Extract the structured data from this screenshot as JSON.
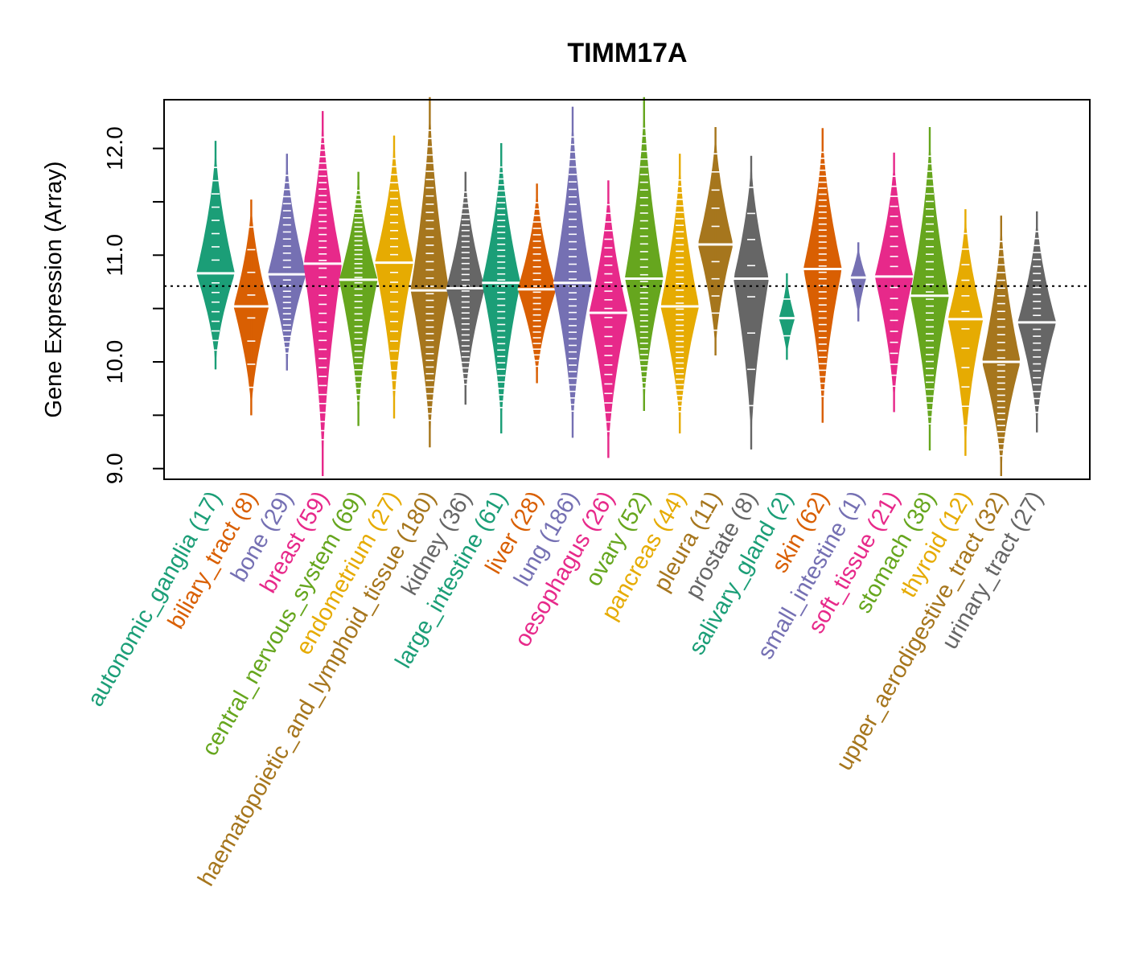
{
  "chart_data": {
    "type": "violin",
    "title": "TIMM17A",
    "xlabel": "",
    "ylabel": "Gene Expression (Array)",
    "ylim": [
      8.95,
      12.5
    ],
    "yticks": [
      9.0,
      9.5,
      10.0,
      10.5,
      11.0,
      11.5,
      12.0
    ],
    "ytick_labels": [
      "9.0",
      "",
      "10.0",
      "",
      "11.0",
      "",
      "12.0"
    ],
    "reference_line": 10.71,
    "grid": false,
    "legend": "none",
    "categories": [
      "autonomic_ganglia",
      "biliary_tract",
      "bone",
      "breast",
      "central_nervous_system",
      "endometrium",
      "haematopoietic_and_lymphoid_tissue",
      "kidney",
      "large_intestine",
      "liver",
      "lung",
      "oesophagus",
      "ovary",
      "pancreas",
      "pleura",
      "prostate",
      "salivary_gland",
      "skin",
      "small_intestine",
      "soft_tissue",
      "stomach",
      "thyroid",
      "upper_aerodigestive_tract",
      "urinary_tract"
    ],
    "counts": [
      17,
      8,
      29,
      59,
      69,
      27,
      180,
      36,
      61,
      28,
      186,
      26,
      52,
      44,
      11,
      8,
      2,
      62,
      1,
      21,
      38,
      12,
      32,
      27
    ],
    "colors": [
      "#1B9E77",
      "#D95F02",
      "#7570B3",
      "#E7298A",
      "#66A61E",
      "#E6AB02",
      "#A6761D",
      "#666666",
      "#1B9E77",
      "#D95F02",
      "#7570B3",
      "#E7298A",
      "#66A61E",
      "#E6AB02",
      "#A6761D",
      "#666666",
      "#1B9E77",
      "#D95F02",
      "#7570B3",
      "#E7298A",
      "#66A61E",
      "#E6AB02",
      "#A6761D",
      "#666666"
    ],
    "series": [
      {
        "name": "autonomic_ganglia",
        "min": 9.93,
        "max": 12.07,
        "median": 10.83
      },
      {
        "name": "biliary_tract",
        "min": 9.5,
        "max": 11.52,
        "median": 10.52
      },
      {
        "name": "bone",
        "min": 9.92,
        "max": 11.95,
        "median": 10.82
      },
      {
        "name": "breast",
        "min": 8.93,
        "max": 12.35,
        "median": 10.92
      },
      {
        "name": "central_nervous_system",
        "min": 9.4,
        "max": 11.78,
        "median": 10.77
      },
      {
        "name": "endometrium",
        "min": 9.47,
        "max": 12.12,
        "median": 10.93
      },
      {
        "name": "haematopoietic_and_lymphoid_tissue",
        "min": 9.2,
        "max": 12.5,
        "median": 10.67
      },
      {
        "name": "kidney",
        "min": 9.6,
        "max": 11.78,
        "median": 10.69
      },
      {
        "name": "large_intestine",
        "min": 9.33,
        "max": 12.05,
        "median": 10.74
      },
      {
        "name": "liver",
        "min": 9.8,
        "max": 11.67,
        "median": 10.68
      },
      {
        "name": "lung",
        "min": 9.29,
        "max": 12.39,
        "median": 10.74
      },
      {
        "name": "oesophagus",
        "min": 9.1,
        "max": 11.7,
        "median": 10.46
      },
      {
        "name": "ovary",
        "min": 9.54,
        "max": 12.48,
        "median": 10.78
      },
      {
        "name": "pancreas",
        "min": 9.33,
        "max": 11.95,
        "median": 10.52
      },
      {
        "name": "pleura",
        "min": 10.06,
        "max": 12.2,
        "median": 11.1
      },
      {
        "name": "prostate",
        "min": 9.18,
        "max": 11.93,
        "median": 10.78
      },
      {
        "name": "salivary_gland",
        "min": 10.02,
        "max": 10.83,
        "median": 10.41
      },
      {
        "name": "skin",
        "min": 9.43,
        "max": 12.19,
        "median": 10.87
      },
      {
        "name": "small_intestine",
        "min": 10.38,
        "max": 11.12,
        "median": 10.79
      },
      {
        "name": "soft_tissue",
        "min": 9.53,
        "max": 11.96,
        "median": 10.8
      },
      {
        "name": "stomach",
        "min": 9.17,
        "max": 12.2,
        "median": 10.62
      },
      {
        "name": "thyroid",
        "min": 9.12,
        "max": 11.43,
        "median": 10.4
      },
      {
        "name": "upper_aerodigestive_tract",
        "min": 8.9,
        "max": 11.37,
        "median": 10.0
      },
      {
        "name": "urinary_tract",
        "min": 9.34,
        "max": 11.41,
        "median": 10.37
      }
    ]
  }
}
